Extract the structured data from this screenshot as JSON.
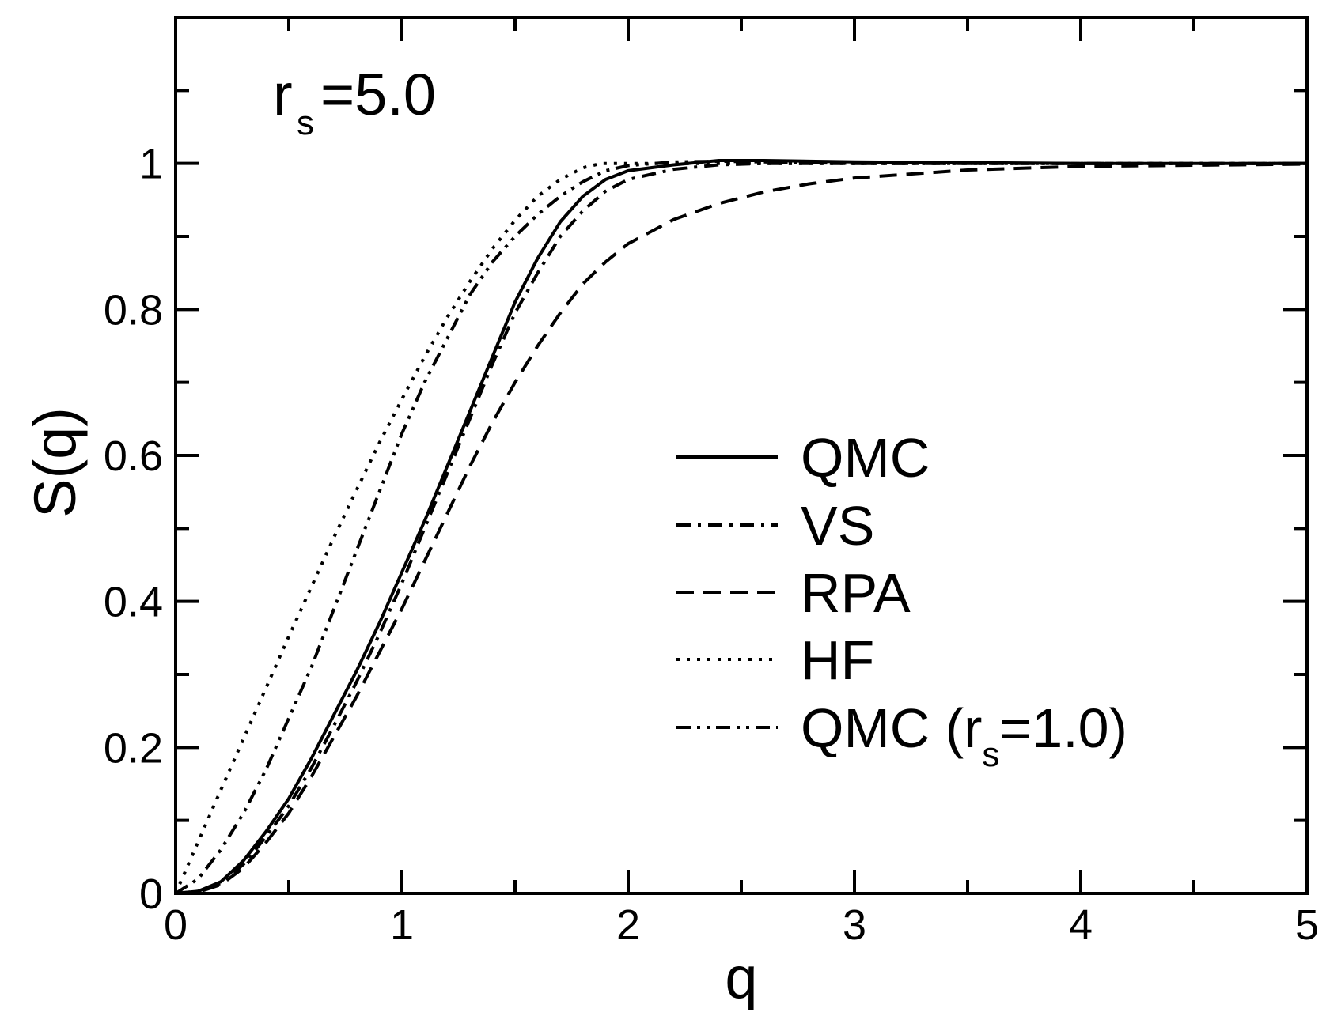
{
  "chart_data": {
    "type": "line",
    "title": "",
    "xlabel": "q",
    "ylabel": "S(q)",
    "xlim": [
      0,
      5
    ],
    "ylim": [
      0,
      1.2
    ],
    "x_ticks": [
      "0",
      "1",
      "2",
      "3",
      "4",
      "5"
    ],
    "y_ticks": [
      "0",
      "0.2",
      "0.4",
      "0.6",
      "0.8",
      "1"
    ],
    "grid": false,
    "legend_position": "center-right",
    "annotation": {
      "base": "r",
      "sub": "s",
      "rest": "=5.0"
    },
    "series": [
      {
        "name": "QMC",
        "legend": {
          "text": "QMC"
        },
        "style": "solid",
        "color": "#000000",
        "points": [
          [
            0,
            0
          ],
          [
            0.1,
            0.003
          ],
          [
            0.2,
            0.016
          ],
          [
            0.3,
            0.045
          ],
          [
            0.4,
            0.085
          ],
          [
            0.5,
            0.13
          ],
          [
            0.6,
            0.185
          ],
          [
            0.7,
            0.245
          ],
          [
            0.8,
            0.305
          ],
          [
            0.9,
            0.37
          ],
          [
            1.0,
            0.44
          ],
          [
            1.1,
            0.51
          ],
          [
            1.2,
            0.585
          ],
          [
            1.3,
            0.66
          ],
          [
            1.4,
            0.735
          ],
          [
            1.5,
            0.81
          ],
          [
            1.6,
            0.87
          ],
          [
            1.7,
            0.92
          ],
          [
            1.8,
            0.955
          ],
          [
            1.9,
            0.978
          ],
          [
            2.0,
            0.99
          ],
          [
            2.2,
            0.998
          ],
          [
            2.4,
            1.004
          ],
          [
            2.6,
            1.004
          ],
          [
            2.8,
            1.003
          ],
          [
            3.0,
            1.002
          ],
          [
            3.5,
            1.001
          ],
          [
            4.0,
            1.0
          ],
          [
            5.0,
            1.0
          ]
        ]
      },
      {
        "name": "VS",
        "legend": {
          "text": "VS"
        },
        "style": "dashdot",
        "color": "#000000",
        "points": [
          [
            0,
            0
          ],
          [
            0.1,
            0.003
          ],
          [
            0.2,
            0.014
          ],
          [
            0.3,
            0.04
          ],
          [
            0.4,
            0.078
          ],
          [
            0.5,
            0.12
          ],
          [
            0.6,
            0.172
          ],
          [
            0.7,
            0.23
          ],
          [
            0.8,
            0.29
          ],
          [
            0.9,
            0.355
          ],
          [
            1.0,
            0.425
          ],
          [
            1.1,
            0.5
          ],
          [
            1.2,
            0.575
          ],
          [
            1.3,
            0.65
          ],
          [
            1.4,
            0.725
          ],
          [
            1.5,
            0.795
          ],
          [
            1.6,
            0.85
          ],
          [
            1.7,
            0.9
          ],
          [
            1.8,
            0.935
          ],
          [
            1.9,
            0.962
          ],
          [
            2.0,
            0.978
          ],
          [
            2.2,
            0.992
          ],
          [
            2.4,
            0.998
          ],
          [
            2.6,
            1.0
          ],
          [
            3.0,
            1.0
          ],
          [
            4.0,
            1.0
          ],
          [
            5.0,
            1.0
          ]
        ]
      },
      {
        "name": "RPA",
        "legend": {
          "text": "RPA"
        },
        "style": "dashed",
        "color": "#000000",
        "points": [
          [
            0,
            0
          ],
          [
            0.1,
            0.002
          ],
          [
            0.2,
            0.012
          ],
          [
            0.3,
            0.035
          ],
          [
            0.4,
            0.07
          ],
          [
            0.5,
            0.11
          ],
          [
            0.6,
            0.16
          ],
          [
            0.7,
            0.215
          ],
          [
            0.8,
            0.27
          ],
          [
            0.9,
            0.33
          ],
          [
            1.0,
            0.39
          ],
          [
            1.1,
            0.455
          ],
          [
            1.2,
            0.52
          ],
          [
            1.3,
            0.585
          ],
          [
            1.4,
            0.645
          ],
          [
            1.5,
            0.7
          ],
          [
            1.6,
            0.75
          ],
          [
            1.7,
            0.795
          ],
          [
            1.8,
            0.835
          ],
          [
            1.9,
            0.865
          ],
          [
            2.0,
            0.89
          ],
          [
            2.2,
            0.923
          ],
          [
            2.4,
            0.945
          ],
          [
            2.6,
            0.961
          ],
          [
            2.8,
            0.972
          ],
          [
            3.0,
            0.98
          ],
          [
            3.5,
            0.991
          ],
          [
            4.0,
            0.996
          ],
          [
            5.0,
            0.999
          ]
        ]
      },
      {
        "name": "HF",
        "legend": {
          "text": "HF"
        },
        "style": "dotted",
        "color": "#000000",
        "points": [
          [
            0,
            0
          ],
          [
            0.1,
            0.071
          ],
          [
            0.2,
            0.142
          ],
          [
            0.3,
            0.212
          ],
          [
            0.4,
            0.282
          ],
          [
            0.5,
            0.352
          ],
          [
            0.6,
            0.42
          ],
          [
            0.7,
            0.488
          ],
          [
            0.8,
            0.553
          ],
          [
            0.9,
            0.617
          ],
          [
            1.0,
            0.677
          ],
          [
            1.1,
            0.735
          ],
          [
            1.2,
            0.789
          ],
          [
            1.3,
            0.838
          ],
          [
            1.4,
            0.883
          ],
          [
            1.5,
            0.922
          ],
          [
            1.6,
            0.955
          ],
          [
            1.7,
            0.978
          ],
          [
            1.8,
            0.994
          ],
          [
            1.88,
            1.0
          ],
          [
            2.0,
            1.0
          ],
          [
            2.5,
            1.0
          ],
          [
            5.0,
            1.0
          ]
        ]
      },
      {
        "name": "QMC (rs=1.0)",
        "legend": {
          "text": "QMC (r",
          "sub": "s",
          "rest": "=1.0)"
        },
        "style": "dashdotdot",
        "color": "#000000",
        "points": [
          [
            0,
            0
          ],
          [
            0.1,
            0.02
          ],
          [
            0.2,
            0.06
          ],
          [
            0.3,
            0.11
          ],
          [
            0.4,
            0.17
          ],
          [
            0.5,
            0.24
          ],
          [
            0.6,
            0.31
          ],
          [
            0.7,
            0.39
          ],
          [
            0.8,
            0.47
          ],
          [
            0.9,
            0.55
          ],
          [
            1.0,
            0.63
          ],
          [
            1.1,
            0.7
          ],
          [
            1.2,
            0.76
          ],
          [
            1.3,
            0.82
          ],
          [
            1.4,
            0.865
          ],
          [
            1.5,
            0.9
          ],
          [
            1.6,
            0.93
          ],
          [
            1.7,
            0.955
          ],
          [
            1.8,
            0.975
          ],
          [
            1.9,
            0.99
          ],
          [
            2.0,
            0.997
          ],
          [
            2.2,
            1.002
          ],
          [
            2.4,
            1.003
          ],
          [
            2.6,
            1.002
          ],
          [
            3.0,
            1.0
          ],
          [
            4.0,
            1.0
          ],
          [
            5.0,
            1.0
          ]
        ]
      }
    ]
  }
}
